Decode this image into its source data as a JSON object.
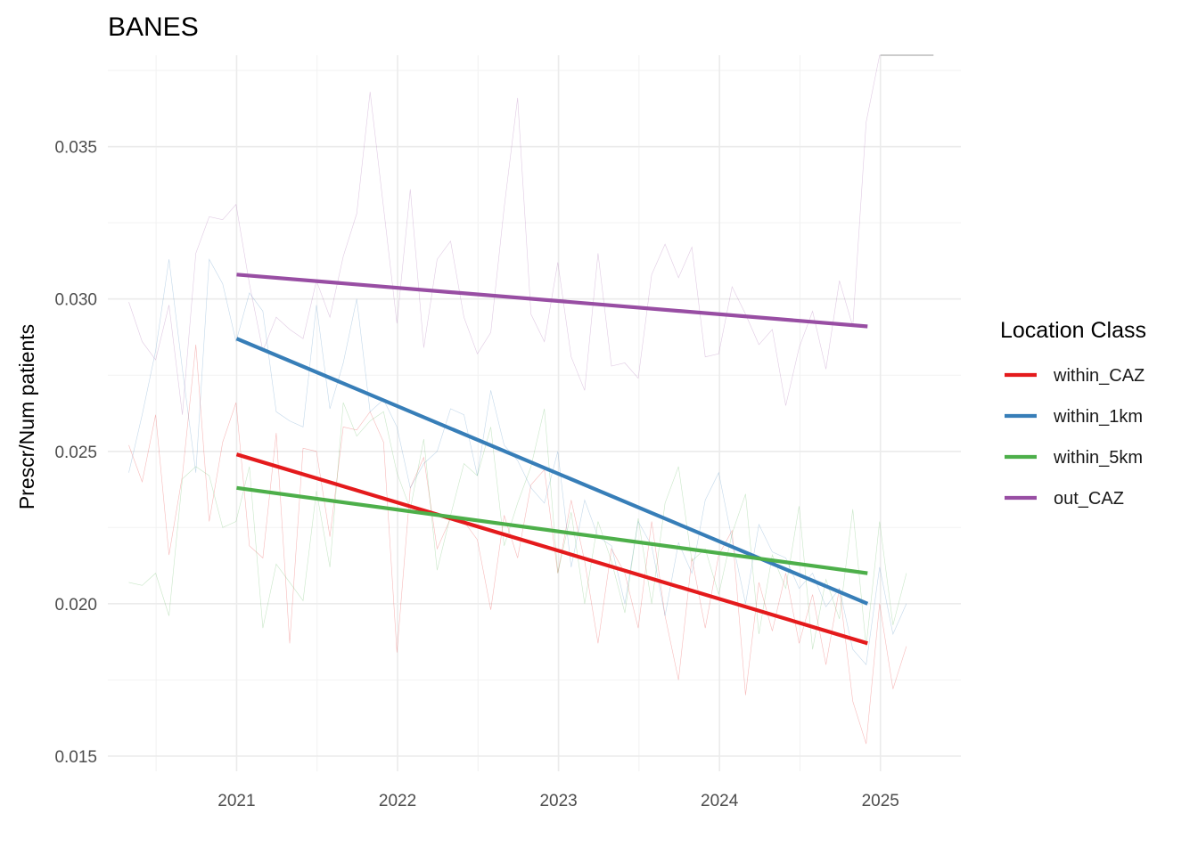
{
  "chart_data": {
    "type": "line",
    "title": "BANES",
    "xlabel": "",
    "ylabel": "Prescr/Num patients",
    "xlim": [
      2020.2,
      2025.5
    ],
    "ylim": [
      0.0145,
      0.038
    ],
    "x_ticks": [
      2021,
      2022,
      2023,
      2024,
      2025
    ],
    "x_tick_labels": [
      "2021",
      "2022",
      "2023",
      "2024",
      "2025"
    ],
    "y_ticks": [
      0.015,
      0.02,
      0.025,
      0.03,
      0.035
    ],
    "y_tick_labels": [
      "0.015",
      "0.020",
      "0.025",
      "0.030",
      "0.035"
    ],
    "grid": true,
    "legend": {
      "title": "Location Class",
      "position": "right",
      "entries": [
        "within_CAZ",
        "within_1km",
        "within_5km",
        "out_CAZ"
      ]
    },
    "series": [
      {
        "name": "within_CAZ",
        "color": "#e41a1c",
        "trend": {
          "x": [
            2021.0,
            2024.92
          ],
          "y": [
            0.0249,
            0.0187
          ]
        },
        "raw_x_start": 2020.33,
        "raw_x_step": 0.0833,
        "raw_y": [
          0.0252,
          0.024,
          0.0262,
          0.0216,
          0.0242,
          0.0285,
          0.0227,
          0.0253,
          0.0266,
          0.0219,
          0.0215,
          0.0256,
          0.0187,
          0.0251,
          0.025,
          0.0222,
          0.0258,
          0.0257,
          0.0263,
          0.0253,
          0.0184,
          0.0238,
          0.0248,
          0.0218,
          0.0228,
          0.0227,
          0.0221,
          0.0198,
          0.0229,
          0.0215,
          0.0239,
          0.0244,
          0.021,
          0.0234,
          0.0214,
          0.0187,
          0.0218,
          0.021,
          0.0192,
          0.0227,
          0.0196,
          0.0175,
          0.0215,
          0.0192,
          0.0216,
          0.0224,
          0.017,
          0.0207,
          0.0191,
          0.021,
          0.0187,
          0.0203,
          0.018,
          0.0205,
          0.0168,
          0.0154,
          0.02,
          0.0172,
          0.0186
        ]
      },
      {
        "name": "within_1km",
        "color": "#377eb8",
        "trend": {
          "x": [
            2021.0,
            2024.92
          ],
          "y": [
            0.0287,
            0.02
          ]
        },
        "raw_x_start": 2020.33,
        "raw_x_step": 0.0833,
        "raw_y": [
          0.0243,
          0.0262,
          0.0283,
          0.0313,
          0.0277,
          0.0243,
          0.0313,
          0.0305,
          0.0286,
          0.0302,
          0.0296,
          0.0263,
          0.026,
          0.0258,
          0.0298,
          0.0264,
          0.0279,
          0.03,
          0.0263,
          0.0267,
          0.0258,
          0.0238,
          0.0246,
          0.025,
          0.0264,
          0.0262,
          0.0242,
          0.027,
          0.0252,
          0.0247,
          0.0238,
          0.0233,
          0.025,
          0.0212,
          0.0234,
          0.0222,
          0.0219,
          0.02,
          0.0227,
          0.0219,
          0.0196,
          0.022,
          0.021,
          0.0234,
          0.0243,
          0.0221,
          0.02,
          0.0226,
          0.0217,
          0.0215,
          0.0205,
          0.021,
          0.0199,
          0.0205,
          0.0185,
          0.018,
          0.0212,
          0.019,
          0.02
        ]
      },
      {
        "name": "within_5km",
        "color": "#4daf4a",
        "trend": {
          "x": [
            2021.0,
            2024.92
          ],
          "y": [
            0.0238,
            0.021
          ]
        },
        "raw_x_start": 2020.33,
        "raw_x_step": 0.0833,
        "raw_y": [
          0.0207,
          0.0206,
          0.021,
          0.0196,
          0.0241,
          0.0245,
          0.0242,
          0.0225,
          0.0227,
          0.0245,
          0.0192,
          0.0213,
          0.0207,
          0.0201,
          0.0237,
          0.0212,
          0.0266,
          0.0255,
          0.026,
          0.0263,
          0.0243,
          0.0231,
          0.0254,
          0.0211,
          0.0229,
          0.0246,
          0.0242,
          0.0258,
          0.0219,
          0.0233,
          0.0245,
          0.0264,
          0.021,
          0.023,
          0.02,
          0.0227,
          0.0214,
          0.0197,
          0.0228,
          0.02,
          0.0233,
          0.0245,
          0.0214,
          0.0218,
          0.0203,
          0.0223,
          0.0236,
          0.019,
          0.0216,
          0.0205,
          0.0232,
          0.0185,
          0.0208,
          0.0195,
          0.0231,
          0.0186,
          0.0227,
          0.0193,
          0.021
        ]
      },
      {
        "name": "out_CAZ",
        "color": "#984ea3",
        "trend": {
          "x": [
            2021.0,
            2024.92
          ],
          "y": [
            0.0308,
            0.0291
          ]
        },
        "raw_x_start": 2020.33,
        "raw_x_step": 0.0833,
        "raw_y": [
          0.0299,
          0.0286,
          0.028,
          0.0298,
          0.0262,
          0.0315,
          0.0327,
          0.0326,
          0.0331,
          0.0305,
          0.0283,
          0.0294,
          0.029,
          0.0287,
          0.0306,
          0.0294,
          0.0314,
          0.0328,
          0.0368,
          0.033,
          0.0292,
          0.0336,
          0.0284,
          0.0313,
          0.0319,
          0.0294,
          0.0282,
          0.0289,
          0.033,
          0.0366,
          0.0295,
          0.0286,
          0.0312,
          0.0281,
          0.027,
          0.0315,
          0.0278,
          0.0279,
          0.0274,
          0.0308,
          0.0318,
          0.0307,
          0.0317,
          0.0281,
          0.0282,
          0.0304,
          0.0295,
          0.0285,
          0.029,
          0.0265,
          0.0284,
          0.0296,
          0.0277,
          0.0306,
          0.0291,
          0.0358,
          0.038,
          0.038,
          0.038
        ]
      }
    ]
  }
}
